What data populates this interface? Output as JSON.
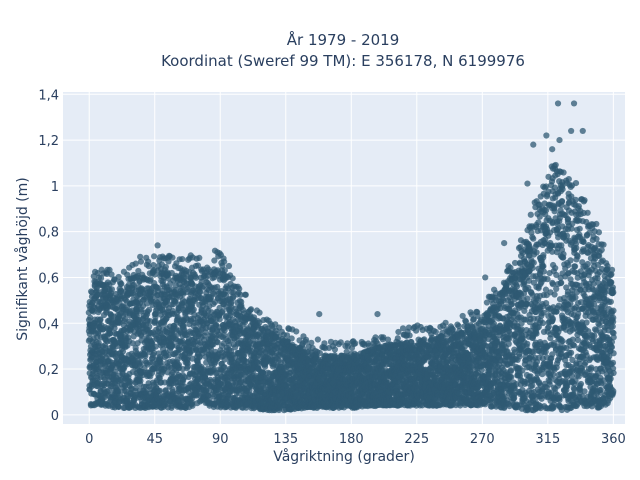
{
  "chart_data": {
    "type": "scatter",
    "title_line1": "År 1979 - 2019",
    "title_line2": "Koordinat (Sweref 99 TM): E 356178, N 6199976",
    "xlabel": "Vågriktning (grader)",
    "ylabel": "Signifikant våghöjd (m)",
    "xlim": [
      -18,
      368
    ],
    "ylim": [
      -0.04,
      1.41
    ],
    "x_ticks": [
      0,
      45,
      90,
      135,
      180,
      225,
      270,
      315,
      360
    ],
    "x_tick_labels": [
      "0",
      "45",
      "90",
      "135",
      "180",
      "225",
      "270",
      "315",
      "360"
    ],
    "y_ticks": [
      0,
      0.2,
      0.4,
      0.6,
      0.8,
      1.0,
      1.2,
      1.4
    ],
    "y_tick_labels": [
      "0",
      "0,2",
      "0,4",
      "0,6",
      "0,8",
      "1",
      "1,2",
      "1,4"
    ],
    "grid": true,
    "marker_color": "#2f5a73",
    "background_color": "#e5ecf6",
    "envelope": {
      "x": [
        0,
        10,
        20,
        30,
        40,
        50,
        60,
        70,
        80,
        90,
        100,
        110,
        120,
        135,
        150,
        165,
        180,
        200,
        225,
        250,
        270,
        285,
        300,
        310,
        315,
        320,
        330,
        340,
        350,
        360
      ],
      "y_max": [
        0.57,
        0.59,
        0.55,
        0.6,
        0.63,
        0.65,
        0.62,
        0.64,
        0.62,
        0.68,
        0.52,
        0.45,
        0.38,
        0.33,
        0.28,
        0.26,
        0.26,
        0.3,
        0.33,
        0.35,
        0.42,
        0.55,
        0.75,
        0.95,
        1.02,
        1.05,
        0.98,
        0.92,
        0.75,
        0.56
      ],
      "y_min": [
        0.04,
        0.04,
        0.03,
        0.03,
        0.03,
        0.03,
        0.03,
        0.03,
        0.03,
        0.03,
        0.03,
        0.03,
        0.02,
        0.02,
        0.03,
        0.03,
        0.03,
        0.04,
        0.04,
        0.04,
        0.04,
        0.03,
        0.02,
        0.02,
        0.02,
        0.02,
        0.02,
        0.03,
        0.03,
        0.04
      ]
    },
    "outliers": [
      {
        "x": 47,
        "y": 0.74
      },
      {
        "x": 35,
        "y": 0.69
      },
      {
        "x": 88,
        "y": 0.71
      },
      {
        "x": 96,
        "y": 0.65
      },
      {
        "x": 198,
        "y": 0.44
      },
      {
        "x": 158,
        "y": 0.44
      },
      {
        "x": 322,
        "y": 1.36
      },
      {
        "x": 333,
        "y": 1.36
      },
      {
        "x": 331,
        "y": 1.24
      },
      {
        "x": 314,
        "y": 1.22
      },
      {
        "x": 305,
        "y": 1.18
      },
      {
        "x": 323,
        "y": 1.2
      },
      {
        "x": 339,
        "y": 1.24
      },
      {
        "x": 318,
        "y": 1.16
      },
      {
        "x": 301,
        "y": 1.01
      },
      {
        "x": 285,
        "y": 0.75
      },
      {
        "x": 296,
        "y": 0.66
      },
      {
        "x": 272,
        "y": 0.6
      },
      {
        "x": 266,
        "y": 0.45
      },
      {
        "x": 352,
        "y": 0.72
      },
      {
        "x": 356,
        "y": 0.65
      }
    ]
  }
}
